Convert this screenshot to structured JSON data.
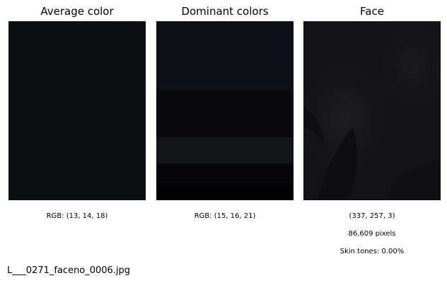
{
  "panels": {
    "average": {
      "title": "Average color",
      "color": "#0d0e12",
      "caption": "RGB: (13, 14, 18)"
    },
    "dominant": {
      "title": "Dominant colors",
      "caption": "RGB: (15, 16, 21)",
      "bands": [
        {
          "color": "#0f1015",
          "share": 0.385
        },
        {
          "color": "#0a0a0e",
          "share": 0.265
        },
        {
          "color": "#141519",
          "share": 0.147
        },
        {
          "color": "#060608",
          "share": 0.127
        },
        {
          "color": "#020202",
          "share": 0.076
        }
      ]
    },
    "face": {
      "title": "Face",
      "base_color": "#131316",
      "shape_caption": "(337, 257, 3)",
      "pixels_caption": "86,609 pixels",
      "skin_caption": "Skin tones: 0.00%"
    }
  },
  "filename": "L___0271_faceno_0006.jpg"
}
